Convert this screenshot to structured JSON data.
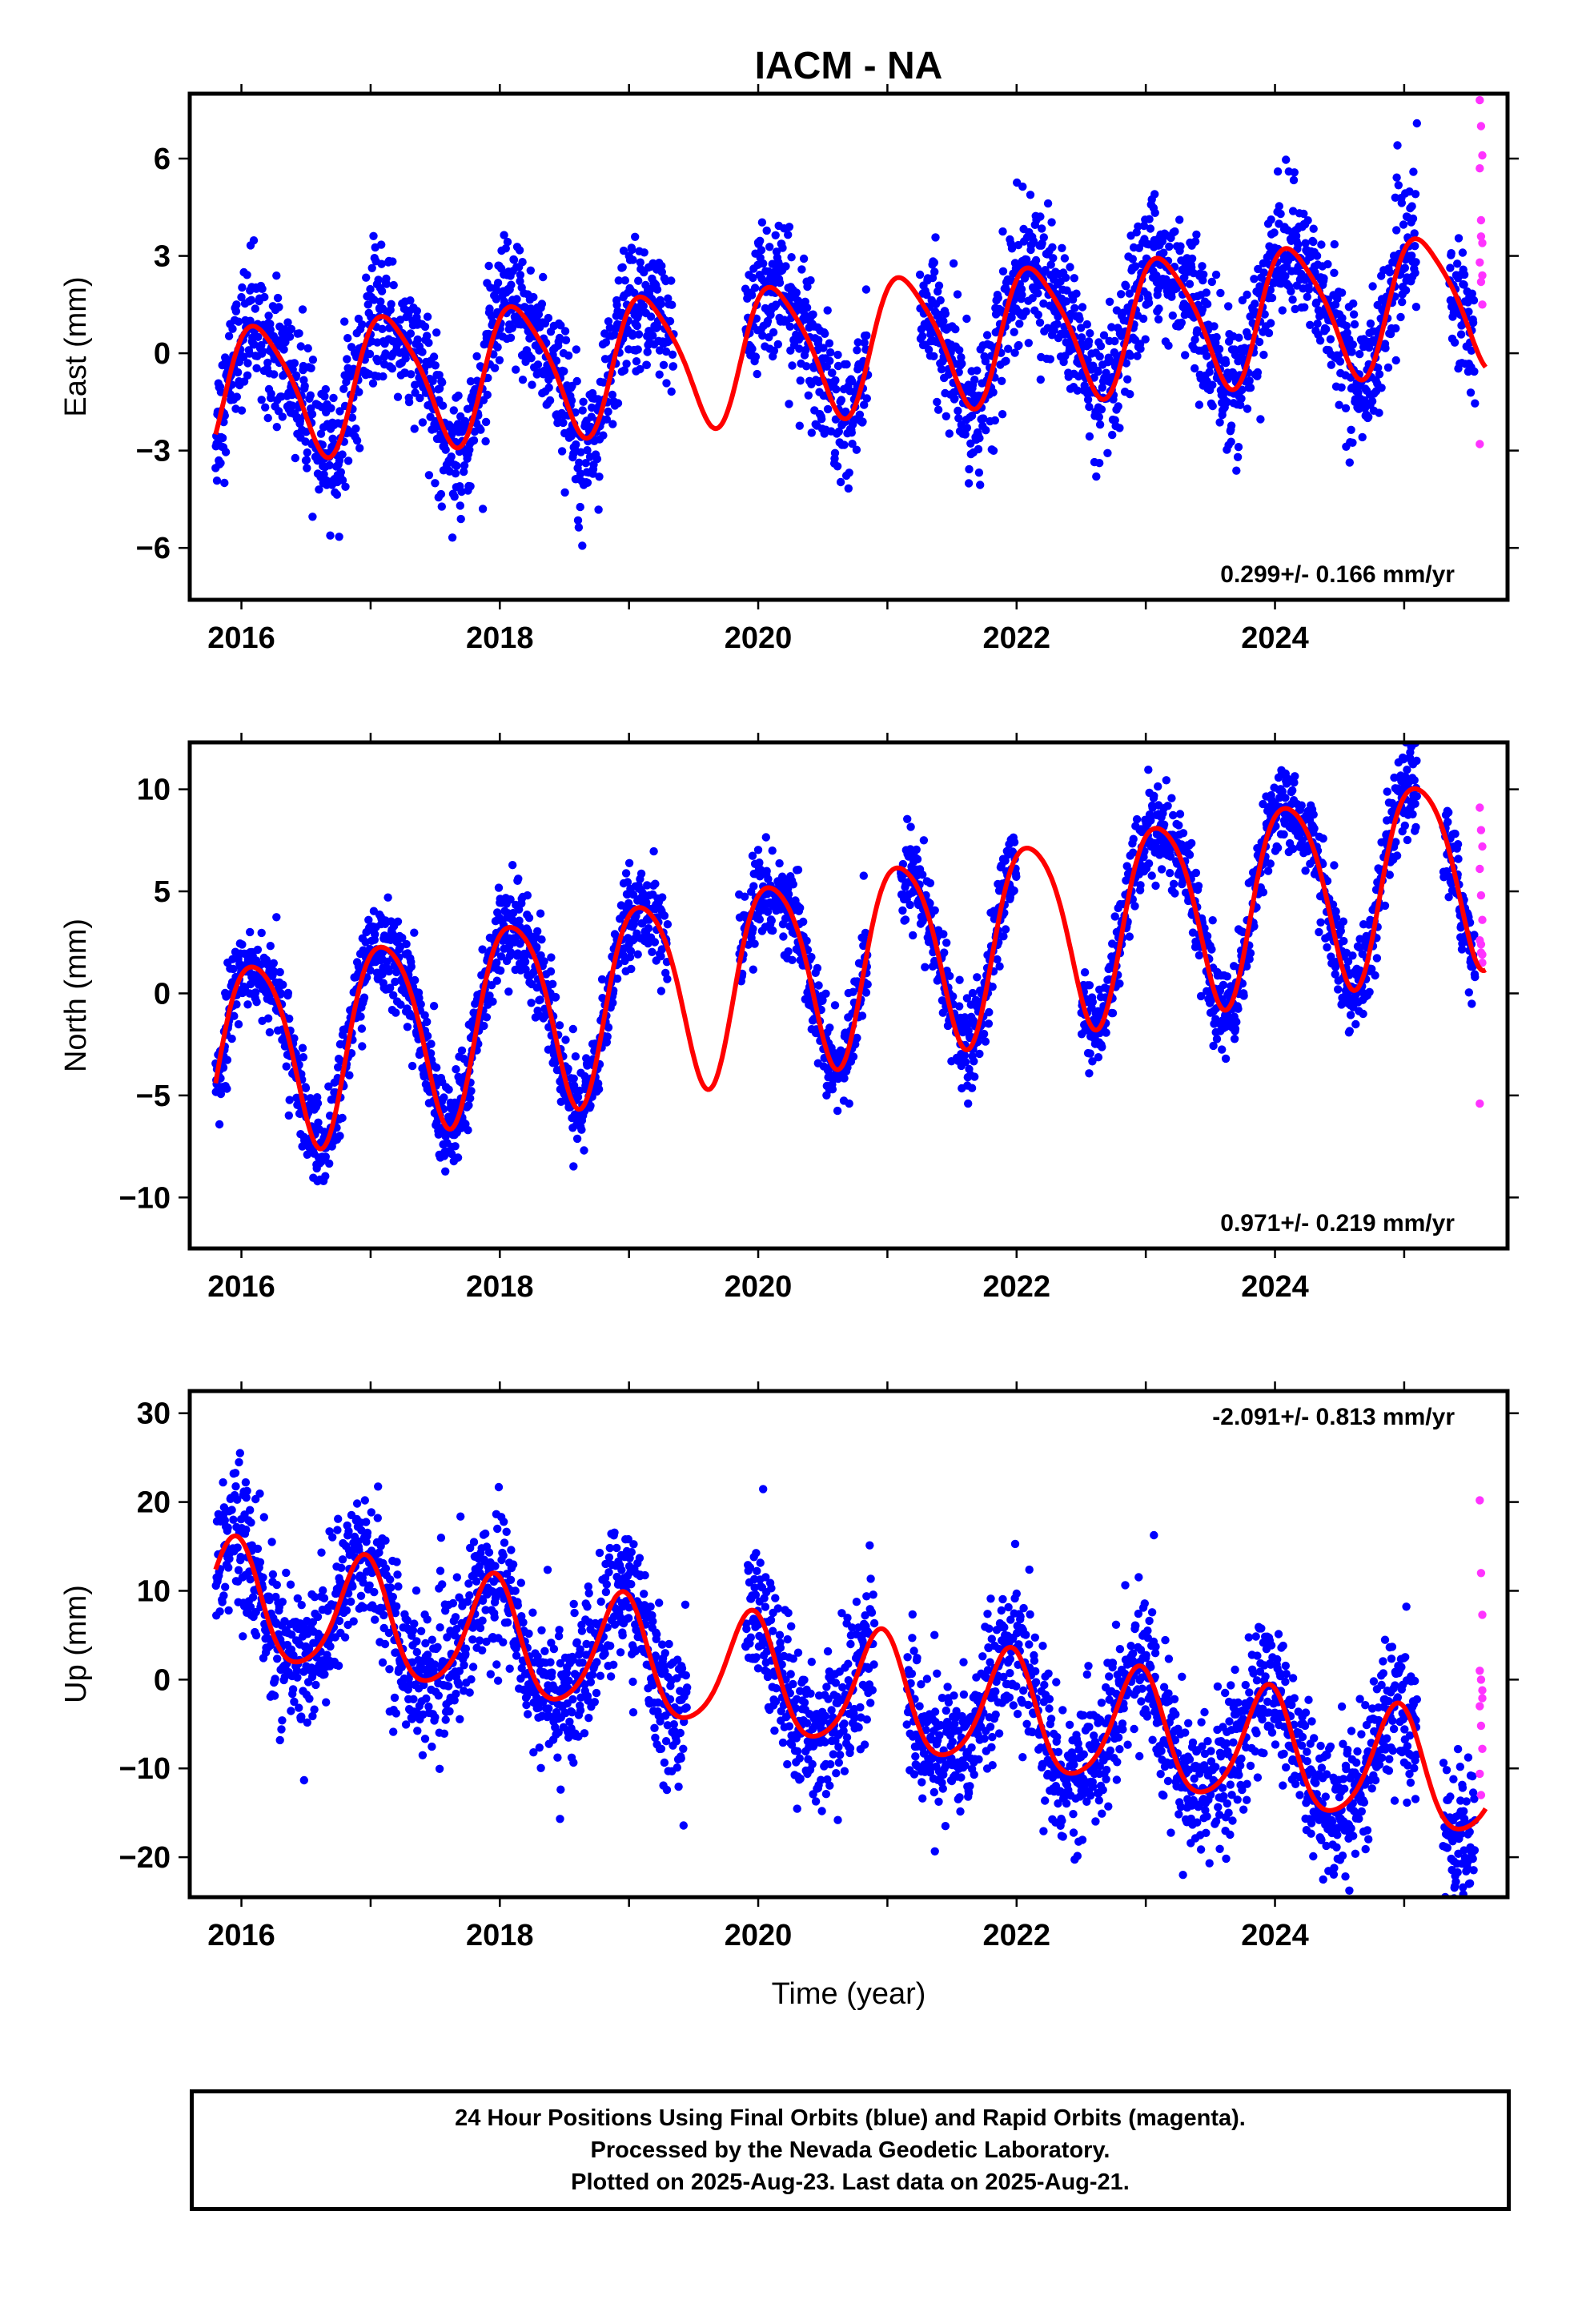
{
  "title": "IACM - NA",
  "xlabel": "Time (year)",
  "x_ticks": [
    "2016",
    "2018",
    "2020",
    "2022",
    "2024"
  ],
  "footer": {
    "line1": "24 Hour Positions Using Final Orbits (blue) and Rapid Orbits (magenta).",
    "line2": "Processed by the Nevada Geodetic Laboratory.",
    "line3": "Plotted on 2025-Aug-23. Last data on 2025-Aug-21."
  },
  "colors": {
    "final": "#0000ff",
    "rapid": "#ff33ff",
    "model": "#ff0000"
  },
  "chart_data": [
    {
      "type": "scatter",
      "component": "east",
      "ylabel": "East (mm)",
      "rate_label": "0.299+/- 0.166 mm/yr",
      "xlim": [
        2015.6,
        2025.8
      ],
      "ylim": [
        -7.6,
        8.0
      ],
      "y_ticks": [
        -6,
        -3,
        0,
        3,
        6
      ],
      "model": {
        "offset": -1.2,
        "rate": 0.299,
        "annual_sin": 1.7,
        "annual_cos": -1.1,
        "semi_sin": 0.3,
        "semi_cos": -0.2,
        "t0": 2015.8,
        "t1": 2025.63,
        "noise": 1.0
      },
      "final_orbits": {
        "start": 2015.8,
        "end": 2025.55,
        "gaps": [
          [
            2019.35,
            2019.9
          ],
          [
            2020.85,
            2021.25
          ],
          [
            2025.1,
            2025.35
          ]
        ]
      },
      "rapid_orbits": [
        7.8,
        7.0,
        6.1,
        5.7,
        4.1,
        3.4,
        2.8,
        2.2,
        1.5,
        -2.8,
        3.6,
        2.4
      ]
    },
    {
      "type": "scatter",
      "component": "north",
      "ylabel": "North (mm)",
      "rate_label": "0.971+/- 0.219 mm/yr",
      "xlim": [
        2015.6,
        2025.8
      ],
      "ylim": [
        -12.5,
        12.3
      ],
      "y_ticks": [
        -10,
        -5,
        0,
        5,
        10
      ],
      "model": {
        "offset": -3.1,
        "rate": 0.971,
        "annual_sin": 4.4,
        "annual_cos": -1.6,
        "semi_sin": 0.6,
        "semi_cos": 0.3,
        "t0": 2015.8,
        "t1": 2025.63,
        "noise": 1.1
      },
      "final_orbits": {
        "start": 2015.8,
        "end": 2025.55,
        "gaps": [
          [
            2019.3,
            2019.85
          ],
          [
            2020.85,
            2021.1
          ],
          [
            2022.0,
            2022.5
          ],
          [
            2025.1,
            2025.3
          ]
        ]
      },
      "rapid_orbits": [
        9.1,
        8.0,
        7.2,
        6.1,
        4.8,
        3.6,
        2.6,
        2.0,
        1.5,
        -5.4,
        2.4,
        1.9
      ]
    },
    {
      "type": "scatter",
      "component": "up",
      "ylabel": "Up (mm)",
      "rate_label": "-2.091+/- 0.813 mm/yr",
      "xlim": [
        2015.6,
        2025.8
      ],
      "ylim": [
        -24.5,
        32.5
      ],
      "y_ticks": [
        -20,
        -10,
        0,
        10,
        20,
        30
      ],
      "model": {
        "offset": 9.0,
        "rate": -2.091,
        "annual_sin": 5.2,
        "annual_cos": 4.0,
        "semi_sin": 0.8,
        "semi_cos": -0.6,
        "t0": 2015.8,
        "t1": 2025.63,
        "noise": 4.0
      },
      "final_orbits": {
        "start": 2015.8,
        "end": 2025.55,
        "gaps": [
          [
            2019.45,
            2019.9
          ],
          [
            2020.9,
            2021.15
          ],
          [
            2025.1,
            2025.3
          ]
        ]
      },
      "rapid_orbits": [
        20.2,
        12.0,
        7.3,
        1.0,
        0.0,
        -1.2,
        -3.0,
        -5.2,
        -7.8,
        -10.6,
        -13.0,
        -2.1
      ]
    }
  ]
}
